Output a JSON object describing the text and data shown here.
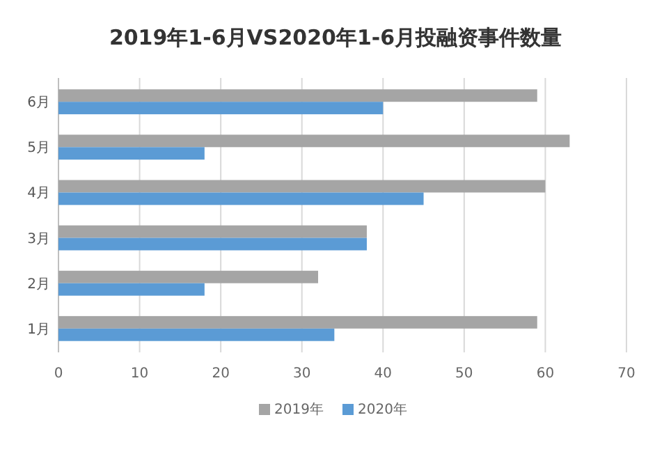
{
  "chart_data": {
    "type": "bar",
    "orientation": "horizontal",
    "title": "2019年1-6月VS2020年1-6月投融资事件数量",
    "categories": [
      "6月",
      "5月",
      "4月",
      "3月",
      "2月",
      "1月"
    ],
    "series": [
      {
        "name": "2019年",
        "color": "#a5a5a5",
        "values": [
          59,
          63,
          60,
          38,
          32,
          59
        ]
      },
      {
        "name": "2020年",
        "color": "#5b9bd5",
        "values": [
          40,
          18,
          45,
          38,
          18,
          34
        ]
      }
    ],
    "xlim": [
      0,
      70
    ],
    "xticks": [
      0,
      10,
      20,
      30,
      40,
      50,
      60,
      70
    ],
    "grid": "x",
    "legend": "bottom"
  }
}
